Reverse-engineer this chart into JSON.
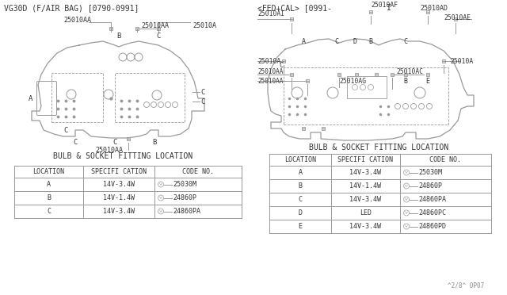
{
  "title_left": "VG30D (F/AIR BAG) [0790-0991]",
  "title_right": "<FED+CAL> [0991-",
  "title_right_i": "I",
  "table_title": "BULB & SOCKET FITTING LOCATION",
  "left_table": {
    "headers": [
      "LOCATION",
      "SPECIFI CATION",
      "CODE NO."
    ],
    "rows": [
      [
        "A",
        "14V-3.4W",
        "25030M"
      ],
      [
        "B",
        "14V-1.4W",
        "24860P"
      ],
      [
        "C",
        "14V-3.4W",
        "24860PA"
      ]
    ]
  },
  "right_table": {
    "headers": [
      "LOCATION",
      "SPECIFI CATION",
      "CODE NO."
    ],
    "rows": [
      [
        "A",
        "14V-3.4W",
        "25030M"
      ],
      [
        "B",
        "14V-1.4W",
        "24860P"
      ],
      [
        "C",
        "14V-3.4W",
        "24860PA"
      ],
      [
        "D",
        "LED",
        "24860PC"
      ],
      [
        "E",
        "14V-3.4W",
        "24860PD"
      ]
    ]
  },
  "page_ref": "^2/8^ 0P07",
  "lc": "#999999",
  "tc": "#555555",
  "tlc": "#999999",
  "dark": "#333333"
}
